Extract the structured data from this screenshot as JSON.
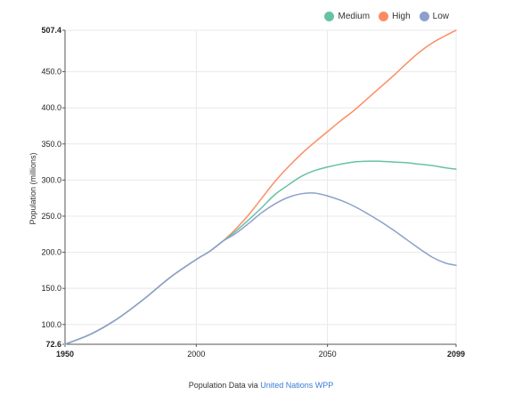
{
  "chart_data": {
    "type": "line",
    "ylabel": "Population (millions)",
    "x_ticks": [
      "1950",
      "2000",
      "2050",
      "2099"
    ],
    "y_ticks": [
      "72.6",
      "100.0",
      "150.0",
      "200.0",
      "250.0",
      "300.0",
      "350.0",
      "400.0",
      "450.0",
      "507.4"
    ],
    "xlim": [
      1950,
      2099
    ],
    "ylim": [
      72.6,
      507.4
    ],
    "grid": "vertical",
    "legend_position": "top-right",
    "series": [
      {
        "name": "Medium",
        "color": "#66c2a5",
        "x": [
          1950,
          1960,
          1970,
          1980,
          1990,
          2000,
          2005,
          2010,
          2015,
          2020,
          2025,
          2030,
          2035,
          2040,
          2045,
          2050,
          2055,
          2060,
          2065,
          2070,
          2075,
          2080,
          2085,
          2090,
          2095,
          2099
        ],
        "y": [
          72.6,
          87,
          108,
          135,
          165,
          190,
          201,
          215,
          229,
          245,
          262,
          280,
          293,
          305,
          313,
          318,
          322,
          325,
          326,
          326,
          325,
          324,
          322,
          320,
          317,
          315
        ]
      },
      {
        "name": "High",
        "color": "#fc8d62",
        "x": [
          1950,
          1960,
          1970,
          1980,
          1990,
          2000,
          2005,
          2010,
          2015,
          2020,
          2025,
          2030,
          2035,
          2040,
          2045,
          2050,
          2055,
          2060,
          2065,
          2070,
          2075,
          2080,
          2085,
          2090,
          2095,
          2099
        ],
        "y": [
          72.6,
          87,
          108,
          135,
          165,
          190,
          201,
          215,
          232,
          252,
          275,
          298,
          318,
          336,
          352,
          367,
          382,
          396,
          412,
          428,
          444,
          461,
          477,
          490,
          500,
          507.4
        ]
      },
      {
        "name": "Low",
        "color": "#8da0cb",
        "x": [
          1950,
          1960,
          1970,
          1980,
          1990,
          2000,
          2005,
          2010,
          2015,
          2020,
          2025,
          2030,
          2035,
          2040,
          2045,
          2050,
          2055,
          2060,
          2065,
          2070,
          2075,
          2080,
          2085,
          2090,
          2095,
          2099
        ],
        "y": [
          72.6,
          87,
          108,
          135,
          165,
          190,
          201,
          215,
          226,
          240,
          255,
          267,
          276,
          281,
          282,
          278,
          272,
          264,
          254,
          243,
          231,
          218,
          205,
          193,
          185,
          182
        ]
      }
    ]
  },
  "source": {
    "prefix": "Population Data via",
    "link_text": "United Nations WPP"
  }
}
